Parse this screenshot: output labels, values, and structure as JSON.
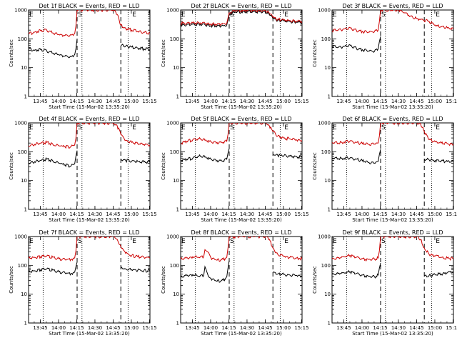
{
  "colors": {
    "events": "#000000",
    "lld": "#cc0000",
    "axes": "#000000",
    "background": "#ffffff"
  },
  "common": {
    "xlabel": "Start Time (15-Mar-02 13:35:20)",
    "ylabel": "Counts/sec",
    "x_ticks": [
      "13:45",
      "14:00",
      "14:15",
      "14:30",
      "14:45",
      "15:00",
      "15:15"
    ],
    "y_ticks": [
      "1",
      "10",
      "100",
      "1000"
    ],
    "markers": {
      "E": "E",
      "S": "S"
    }
  },
  "chart_data": [
    {
      "type": "line",
      "title": "Det 1f BLACK = Events, RED = LLD",
      "xlabel": "Start Time (15-Mar-02 13:35:20)",
      "ylabel": "Counts/sec",
      "x_unit": "minutes since 13:35:20",
      "xlim": [
        0,
        100
      ],
      "ylim": [
        1,
        1000
      ],
      "yscale": "log",
      "dotted_x": [
        12,
        44,
        82
      ],
      "dashed_x": [
        40,
        76
      ],
      "series": [
        {
          "name": "Events",
          "color": "#000000",
          "x": [
            0,
            5,
            10,
            15,
            20,
            25,
            30,
            35,
            38,
            39,
            40,
            76,
            80,
            85,
            90,
            95,
            100
          ],
          "values": [
            45,
            40,
            42,
            38,
            32,
            28,
            25,
            24,
            28,
            45,
            100,
            60,
            55,
            52,
            48,
            45,
            42
          ]
        },
        {
          "name": "LLD",
          "color": "#cc0000",
          "x": [
            0,
            5,
            10,
            15,
            20,
            25,
            30,
            35,
            38,
            39,
            40,
            70,
            73,
            76,
            80,
            85,
            90,
            95,
            100
          ],
          "values": [
            150,
            170,
            190,
            200,
            160,
            140,
            130,
            135,
            150,
            280,
            1000,
            1000,
            700,
            300,
            230,
            200,
            180,
            170,
            160
          ]
        }
      ]
    },
    {
      "type": "line",
      "title": "Det 2f BLACK = Events, RED = LLD",
      "xlabel": "Start Time (15-Mar-02 13:35:20)",
      "ylabel": "Counts/sec",
      "x_unit": "minutes since 13:35:20",
      "xlim": [
        0,
        100
      ],
      "ylim": [
        1,
        1000
      ],
      "yscale": "log",
      "dotted_x": [
        12,
        44,
        82
      ],
      "dashed_x": [
        40,
        76
      ],
      "series": [
        {
          "name": "Events",
          "color": "#000000",
          "x": [
            0,
            5,
            10,
            15,
            20,
            25,
            30,
            35,
            38,
            40,
            45,
            50,
            55,
            60,
            65,
            70,
            73,
            76,
            80,
            85,
            90,
            95,
            100
          ],
          "values": [
            300,
            310,
            320,
            330,
            310,
            290,
            280,
            285,
            300,
            700,
            850,
            880,
            880,
            870,
            860,
            850,
            700,
            500,
            450,
            420,
            400,
            380,
            370
          ]
        },
        {
          "name": "LLD",
          "color": "#cc0000",
          "x": [
            0,
            5,
            10,
            15,
            20,
            25,
            30,
            35,
            38,
            40,
            45,
            50,
            55,
            60,
            65,
            70,
            73,
            76,
            80,
            85,
            90,
            95,
            100
          ],
          "values": [
            340,
            350,
            360,
            370,
            350,
            330,
            320,
            330,
            350,
            800,
            950,
            980,
            980,
            960,
            950,
            940,
            780,
            550,
            480,
            450,
            430,
            410,
            400
          ]
        }
      ]
    },
    {
      "type": "line",
      "title": "Det 3f BLACK = Events, RED = LLD",
      "xlabel": "Start Time (15-Mar-02 13:35:20)",
      "ylabel": "Counts/sec",
      "x_unit": "minutes since 13:35:20",
      "xlim": [
        0,
        100
      ],
      "ylim": [
        1,
        1000
      ],
      "yscale": "log",
      "dotted_x": [
        12,
        44,
        82
      ],
      "dashed_x": [
        40,
        76
      ],
      "series": [
        {
          "name": "Events",
          "color": "#000000",
          "x": [
            0,
            5,
            10,
            15,
            20,
            25,
            30,
            35,
            38,
            39,
            40
          ],
          "values": [
            55,
            50,
            55,
            60,
            48,
            42,
            38,
            37,
            45,
            80,
            120
          ]
        },
        {
          "name": "LLD",
          "color": "#cc0000",
          "x": [
            0,
            5,
            10,
            15,
            20,
            25,
            30,
            35,
            38,
            39,
            40,
            55,
            60,
            65,
            70,
            75,
            80,
            85,
            90,
            95,
            100
          ],
          "values": [
            190,
            200,
            220,
            240,
            200,
            180,
            170,
            180,
            200,
            400,
            1000,
            1000,
            800,
            600,
            500,
            450,
            400,
            300,
            260,
            240,
            220
          ]
        }
      ]
    },
    {
      "type": "line",
      "title": "Det 4f BLACK = Events, RED = LLD",
      "xlabel": "Start Time (15-Mar-02 13:35:20)",
      "ylabel": "Counts/sec",
      "x_unit": "minutes since 13:35:20",
      "xlim": [
        0,
        100
      ],
      "ylim": [
        1,
        1000
      ],
      "yscale": "log",
      "dotted_x": [
        12,
        44,
        82
      ],
      "dashed_x": [
        40,
        76
      ],
      "series": [
        {
          "name": "Events",
          "color": "#000000",
          "x": [
            0,
            5,
            10,
            15,
            20,
            25,
            30,
            35,
            38,
            39,
            40,
            76,
            80,
            85,
            90,
            95,
            100
          ],
          "values": [
            40,
            45,
            50,
            55,
            48,
            40,
            35,
            32,
            38,
            70,
            110,
            55,
            50,
            48,
            46,
            44,
            42
          ]
        },
        {
          "name": "LLD",
          "color": "#cc0000",
          "x": [
            0,
            5,
            10,
            15,
            20,
            25,
            30,
            35,
            38,
            39,
            40,
            70,
            73,
            76,
            80,
            85,
            90,
            95,
            100
          ],
          "values": [
            160,
            180,
            200,
            210,
            180,
            160,
            150,
            150,
            170,
            300,
            1000,
            1000,
            800,
            400,
            250,
            210,
            190,
            180,
            170
          ]
        }
      ]
    },
    {
      "type": "line",
      "title": "Det 5f BLACK = Events, RED = LLD",
      "xlabel": "Start Time (15-Mar-02 13:35:20)",
      "ylabel": "Counts/sec",
      "x_unit": "minutes since 13:35:20",
      "xlim": [
        0,
        100
      ],
      "ylim": [
        1,
        1000
      ],
      "yscale": "log",
      "dotted_x": [
        12,
        44,
        82
      ],
      "dashed_x": [
        40,
        76
      ],
      "series": [
        {
          "name": "Events",
          "color": "#000000",
          "x": [
            0,
            5,
            10,
            15,
            20,
            25,
            30,
            35,
            38,
            39,
            40,
            76,
            80,
            85,
            90,
            95,
            100
          ],
          "values": [
            50,
            55,
            60,
            70,
            65,
            55,
            50,
            48,
            55,
            90,
            130,
            80,
            75,
            72,
            70,
            68,
            65
          ]
        },
        {
          "name": "LLD",
          "color": "#cc0000",
          "x": [
            0,
            5,
            10,
            15,
            20,
            25,
            30,
            35,
            38,
            39,
            40,
            70,
            73,
            76,
            80,
            85,
            90,
            95,
            100
          ],
          "values": [
            200,
            230,
            260,
            280,
            250,
            220,
            210,
            210,
            230,
            400,
            1000,
            1000,
            800,
            500,
            350,
            300,
            280,
            260,
            250
          ]
        }
      ]
    },
    {
      "type": "line",
      "title": "Det 6f BLACK = Events, RED = LLD",
      "xlabel": "Start Time (15-Mar-02 13:35:20)",
      "ylabel": "Counts/sec",
      "x_unit": "minutes since 13:35:20",
      "xlim": [
        0,
        100
      ],
      "ylim": [
        1,
        1000
      ],
      "yscale": "log",
      "dotted_x": [
        12,
        44,
        82
      ],
      "dashed_x": [
        40,
        76
      ],
      "series": [
        {
          "name": "Events",
          "color": "#000000",
          "x": [
            0,
            5,
            10,
            15,
            20,
            25,
            30,
            35,
            38,
            39,
            40,
            76,
            80,
            85,
            90,
            95,
            100
          ],
          "values": [
            60,
            58,
            60,
            62,
            55,
            48,
            42,
            40,
            46,
            80,
            120,
            55,
            52,
            50,
            48,
            46,
            45
          ]
        },
        {
          "name": "LLD",
          "color": "#cc0000",
          "x": [
            0,
            5,
            10,
            15,
            20,
            25,
            30,
            35,
            38,
            39,
            40,
            70,
            73,
            76,
            80,
            85,
            90,
            95,
            100
          ],
          "values": [
            210,
            200,
            220,
            240,
            210,
            190,
            180,
            185,
            200,
            350,
            1000,
            1000,
            900,
            500,
            260,
            220,
            200,
            190,
            180
          ]
        }
      ]
    },
    {
      "type": "line",
      "title": "Det 7f BLACK = Events, RED = LLD",
      "xlabel": "Start Time (15-Mar-02 13:35:20)",
      "ylabel": "Counts/sec",
      "x_unit": "minutes since 13:35:20",
      "xlim": [
        0,
        100
      ],
      "ylim": [
        1,
        1000
      ],
      "yscale": "log",
      "dotted_x": [
        12,
        44,
        82
      ],
      "dashed_x": [
        40,
        76
      ],
      "series": [
        {
          "name": "Events",
          "color": "#000000",
          "x": [
            0,
            5,
            10,
            15,
            20,
            25,
            30,
            35,
            38,
            39,
            40,
            76,
            80,
            85,
            90,
            95,
            100
          ],
          "values": [
            60,
            65,
            70,
            75,
            68,
            60,
            55,
            52,
            58,
            90,
            130,
            80,
            75,
            70,
            68,
            66,
            65
          ]
        },
        {
          "name": "LLD",
          "color": "#cc0000",
          "x": [
            0,
            5,
            10,
            15,
            20,
            25,
            30,
            35,
            38,
            39,
            40,
            70,
            73,
            76,
            80,
            85,
            90,
            95,
            100
          ],
          "values": [
            180,
            190,
            200,
            210,
            190,
            170,
            160,
            165,
            180,
            320,
            1000,
            1000,
            800,
            450,
            260,
            220,
            200,
            190,
            185
          ]
        }
      ]
    },
    {
      "type": "line",
      "title": "Det 8f BLACK = Events, RED = LLD",
      "xlabel": "Start Time (15-Mar-02 13:35:20)",
      "ylabel": "Counts/sec",
      "x_unit": "minutes since 13:35:20",
      "xlim": [
        0,
        100
      ],
      "ylim": [
        1,
        1000
      ],
      "yscale": "log",
      "dotted_x": [
        12,
        44,
        82
      ],
      "dashed_x": [
        40,
        76
      ],
      "series": [
        {
          "name": "Events",
          "color": "#000000",
          "x": [
            0,
            5,
            10,
            15,
            19,
            20,
            21,
            23,
            25,
            28,
            30,
            35,
            38,
            39,
            40,
            76,
            80,
            85,
            90,
            95,
            100
          ],
          "values": [
            40,
            45,
            48,
            42,
            45,
            90,
            70,
            40,
            35,
            30,
            28,
            30,
            40,
            80,
            150,
            55,
            50,
            48,
            46,
            45,
            44
          ]
        },
        {
          "name": "LLD",
          "color": "#cc0000",
          "x": [
            0,
            5,
            10,
            15,
            19,
            20,
            21,
            23,
            25,
            28,
            30,
            35,
            38,
            39,
            40,
            70,
            73,
            76,
            80,
            85,
            90,
            95,
            100
          ],
          "values": [
            170,
            180,
            200,
            190,
            200,
            350,
            320,
            280,
            180,
            160,
            150,
            160,
            190,
            400,
            1000,
            1000,
            800,
            400,
            240,
            210,
            190,
            180,
            170
          ]
        }
      ]
    },
    {
      "type": "line",
      "title": "Det 9f BLACK = Events, RED = LLD",
      "xlabel": "Start Time (15-Mar-02 13:35:20)",
      "ylabel": "Counts/sec",
      "x_unit": "minutes since 13:35:20",
      "xlim": [
        0,
        100
      ],
      "ylim": [
        1,
        1000
      ],
      "yscale": "log",
      "dotted_x": [
        12,
        44,
        82
      ],
      "dashed_x": [
        40,
        76
      ],
      "series": [
        {
          "name": "Events",
          "color": "#000000",
          "x": [
            0,
            5,
            10,
            15,
            20,
            25,
            30,
            35,
            38,
            39,
            40,
            76,
            80,
            85,
            90,
            95,
            100
          ],
          "values": [
            50,
            52,
            55,
            60,
            52,
            46,
            42,
            40,
            46,
            80,
            120,
            42,
            45,
            48,
            50,
            55,
            58
          ]
        },
        {
          "name": "LLD",
          "color": "#cc0000",
          "x": [
            0,
            5,
            10,
            15,
            20,
            25,
            30,
            35,
            38,
            39,
            40,
            70,
            73,
            76,
            80,
            85,
            90,
            95,
            100
          ],
          "values": [
            170,
            180,
            200,
            220,
            190,
            170,
            160,
            165,
            180,
            320,
            1000,
            1000,
            800,
            400,
            240,
            210,
            190,
            180,
            170
          ]
        }
      ]
    }
  ]
}
